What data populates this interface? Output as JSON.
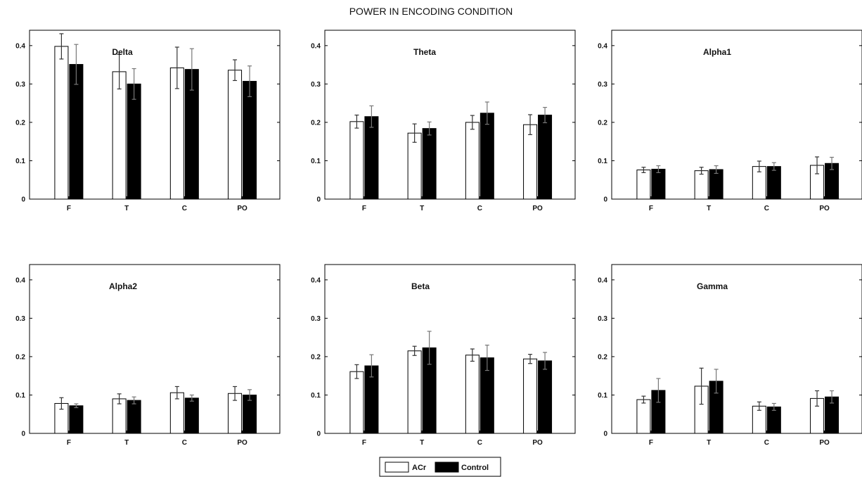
{
  "title": "POWER IN ENCODING CONDITION",
  "legend": [
    "ACr",
    "Control"
  ],
  "colors": {
    "acr": "#ffffff",
    "control": "#000000",
    "axis": "#000000"
  },
  "chart_data": [
    {
      "type": "bar",
      "title": "Delta",
      "categories": [
        "F",
        "T",
        "C",
        "PO"
      ],
      "ylim": [
        0,
        0.44
      ],
      "yticks": [
        "0",
        "0.1",
        "0.2",
        "0.3",
        "0.4"
      ],
      "series": [
        {
          "name": "ACr",
          "values": [
            0.398,
            0.332,
            0.342,
            0.336
          ],
          "errors": [
            0.033,
            0.045,
            0.054,
            0.027
          ]
        },
        {
          "name": "Control",
          "values": [
            0.351,
            0.3,
            0.338,
            0.307
          ],
          "errors": [
            0.052,
            0.04,
            0.054,
            0.04
          ]
        }
      ]
    },
    {
      "type": "bar",
      "title": "Theta",
      "categories": [
        "F",
        "T",
        "C",
        "PO"
      ],
      "ylim": [
        0,
        0.44
      ],
      "yticks": [
        "0",
        "0.1",
        "0.2",
        "0.3",
        "0.4"
      ],
      "series": [
        {
          "name": "ACr",
          "values": [
            0.202,
            0.172,
            0.2,
            0.194
          ],
          "errors": [
            0.017,
            0.024,
            0.018,
            0.026
          ]
        },
        {
          "name": "Control",
          "values": [
            0.215,
            0.184,
            0.224,
            0.219
          ],
          "errors": [
            0.028,
            0.017,
            0.029,
            0.02
          ]
        }
      ]
    },
    {
      "type": "bar",
      "title": "Alpha1",
      "categories": [
        "F",
        "T",
        "C",
        "PO"
      ],
      "ylim": [
        0,
        0.44
      ],
      "yticks": [
        "0",
        "0.1",
        "0.2",
        "0.3",
        "0.4"
      ],
      "series": [
        {
          "name": "ACr",
          "values": [
            0.076,
            0.074,
            0.085,
            0.088
          ],
          "errors": [
            0.007,
            0.009,
            0.014,
            0.022
          ]
        },
        {
          "name": "Control",
          "values": [
            0.078,
            0.077,
            0.085,
            0.093
          ],
          "errors": [
            0.009,
            0.01,
            0.01,
            0.016
          ]
        }
      ]
    },
    {
      "type": "bar",
      "title": "Alpha2",
      "categories": [
        "F",
        "T",
        "C",
        "PO"
      ],
      "ylim": [
        0,
        0.44
      ],
      "yticks": [
        "0",
        "0.1",
        "0.2",
        "0.3",
        "0.4"
      ],
      "series": [
        {
          "name": "ACr",
          "values": [
            0.078,
            0.09,
            0.106,
            0.104
          ],
          "errors": [
            0.015,
            0.013,
            0.016,
            0.018
          ]
        },
        {
          "name": "Control",
          "values": [
            0.072,
            0.086,
            0.092,
            0.1
          ],
          "errors": [
            0.005,
            0.009,
            0.008,
            0.014
          ]
        }
      ]
    },
    {
      "type": "bar",
      "title": "Beta",
      "categories": [
        "F",
        "T",
        "C",
        "PO"
      ],
      "ylim": [
        0,
        0.44
      ],
      "yticks": [
        "0",
        "0.1",
        "0.2",
        "0.3",
        "0.4"
      ],
      "series": [
        {
          "name": "ACr",
          "values": [
            0.161,
            0.215,
            0.204,
            0.194
          ],
          "errors": [
            0.018,
            0.012,
            0.016,
            0.012
          ]
        },
        {
          "name": "Control",
          "values": [
            0.176,
            0.223,
            0.197,
            0.189
          ],
          "errors": [
            0.029,
            0.043,
            0.033,
            0.022
          ]
        }
      ]
    },
    {
      "type": "bar",
      "title": "Gamma",
      "categories": [
        "F",
        "T",
        "C",
        "PO"
      ],
      "ylim": [
        0,
        0.44
      ],
      "yticks": [
        "0",
        "0.1",
        "0.2",
        "0.3",
        "0.4"
      ],
      "series": [
        {
          "name": "ACr",
          "values": [
            0.088,
            0.123,
            0.071,
            0.091
          ],
          "errors": [
            0.009,
            0.047,
            0.011,
            0.02
          ]
        },
        {
          "name": "Control",
          "values": [
            0.112,
            0.136,
            0.069,
            0.095
          ],
          "errors": [
            0.031,
            0.031,
            0.009,
            0.016
          ]
        }
      ]
    }
  ]
}
